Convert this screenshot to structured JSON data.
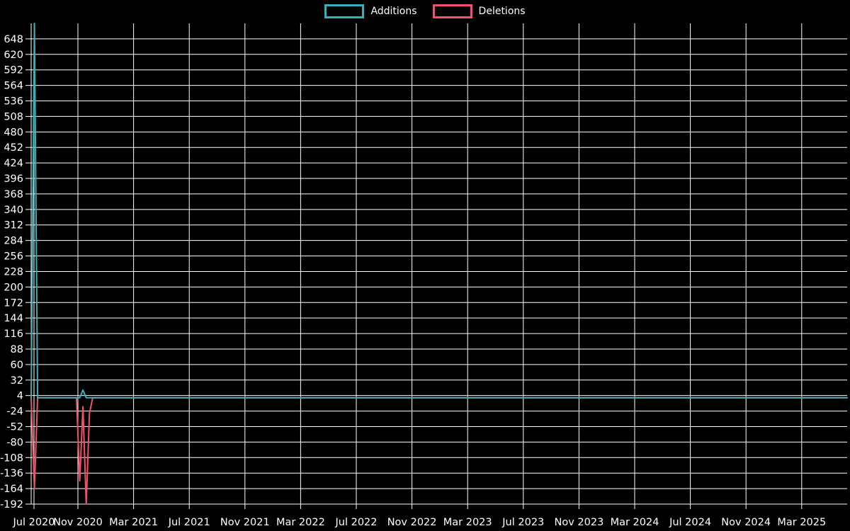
{
  "chart_data": {
    "type": "line",
    "title": "",
    "background_color": "#000000",
    "grid": true,
    "grid_color": "#ffffff",
    "text_color": "#ffffff",
    "legend_position": "top-center",
    "x_axis": {
      "unit": "week-index",
      "weeks_total": 252,
      "tick_labels": [
        "Jul 2020",
        "Nov 2020",
        "Mar 2021",
        "Jul 2021",
        "Nov 2021",
        "Mar 2022",
        "Jul 2022",
        "Nov 2022",
        "Mar 2023",
        "Jul 2023",
        "Nov 2023",
        "Mar 2024",
        "Jul 2024",
        "Nov 2024",
        "Mar 2025"
      ]
    },
    "y_axis": {
      "ylim": [
        -192,
        676
      ],
      "tick_step": 28,
      "tick_labels": [
        648,
        620,
        592,
        564,
        536,
        508,
        480,
        452,
        424,
        396,
        368,
        340,
        312,
        284,
        256,
        228,
        200,
        172,
        144,
        116,
        88,
        60,
        32,
        4,
        -24,
        -52,
        -80,
        -108,
        -136,
        -164,
        -192
      ]
    },
    "series": [
      {
        "name": "Additions",
        "color": "#35b2b8",
        "points": [
          [
            0,
            0
          ],
          [
            1,
            676
          ],
          [
            2,
            0
          ],
          [
            15,
            0
          ],
          [
            16,
            14
          ],
          [
            17,
            0
          ],
          [
            252,
            0
          ]
        ]
      },
      {
        "name": "Deletions",
        "color": "#f4506e",
        "points": [
          [
            0,
            0
          ],
          [
            1,
            -164
          ],
          [
            2,
            0
          ],
          [
            14,
            0
          ],
          [
            15,
            -150
          ],
          [
            16,
            -16
          ],
          [
            17,
            -192
          ],
          [
            18,
            -28
          ],
          [
            19,
            0
          ],
          [
            252,
            0
          ]
        ]
      }
    ]
  }
}
